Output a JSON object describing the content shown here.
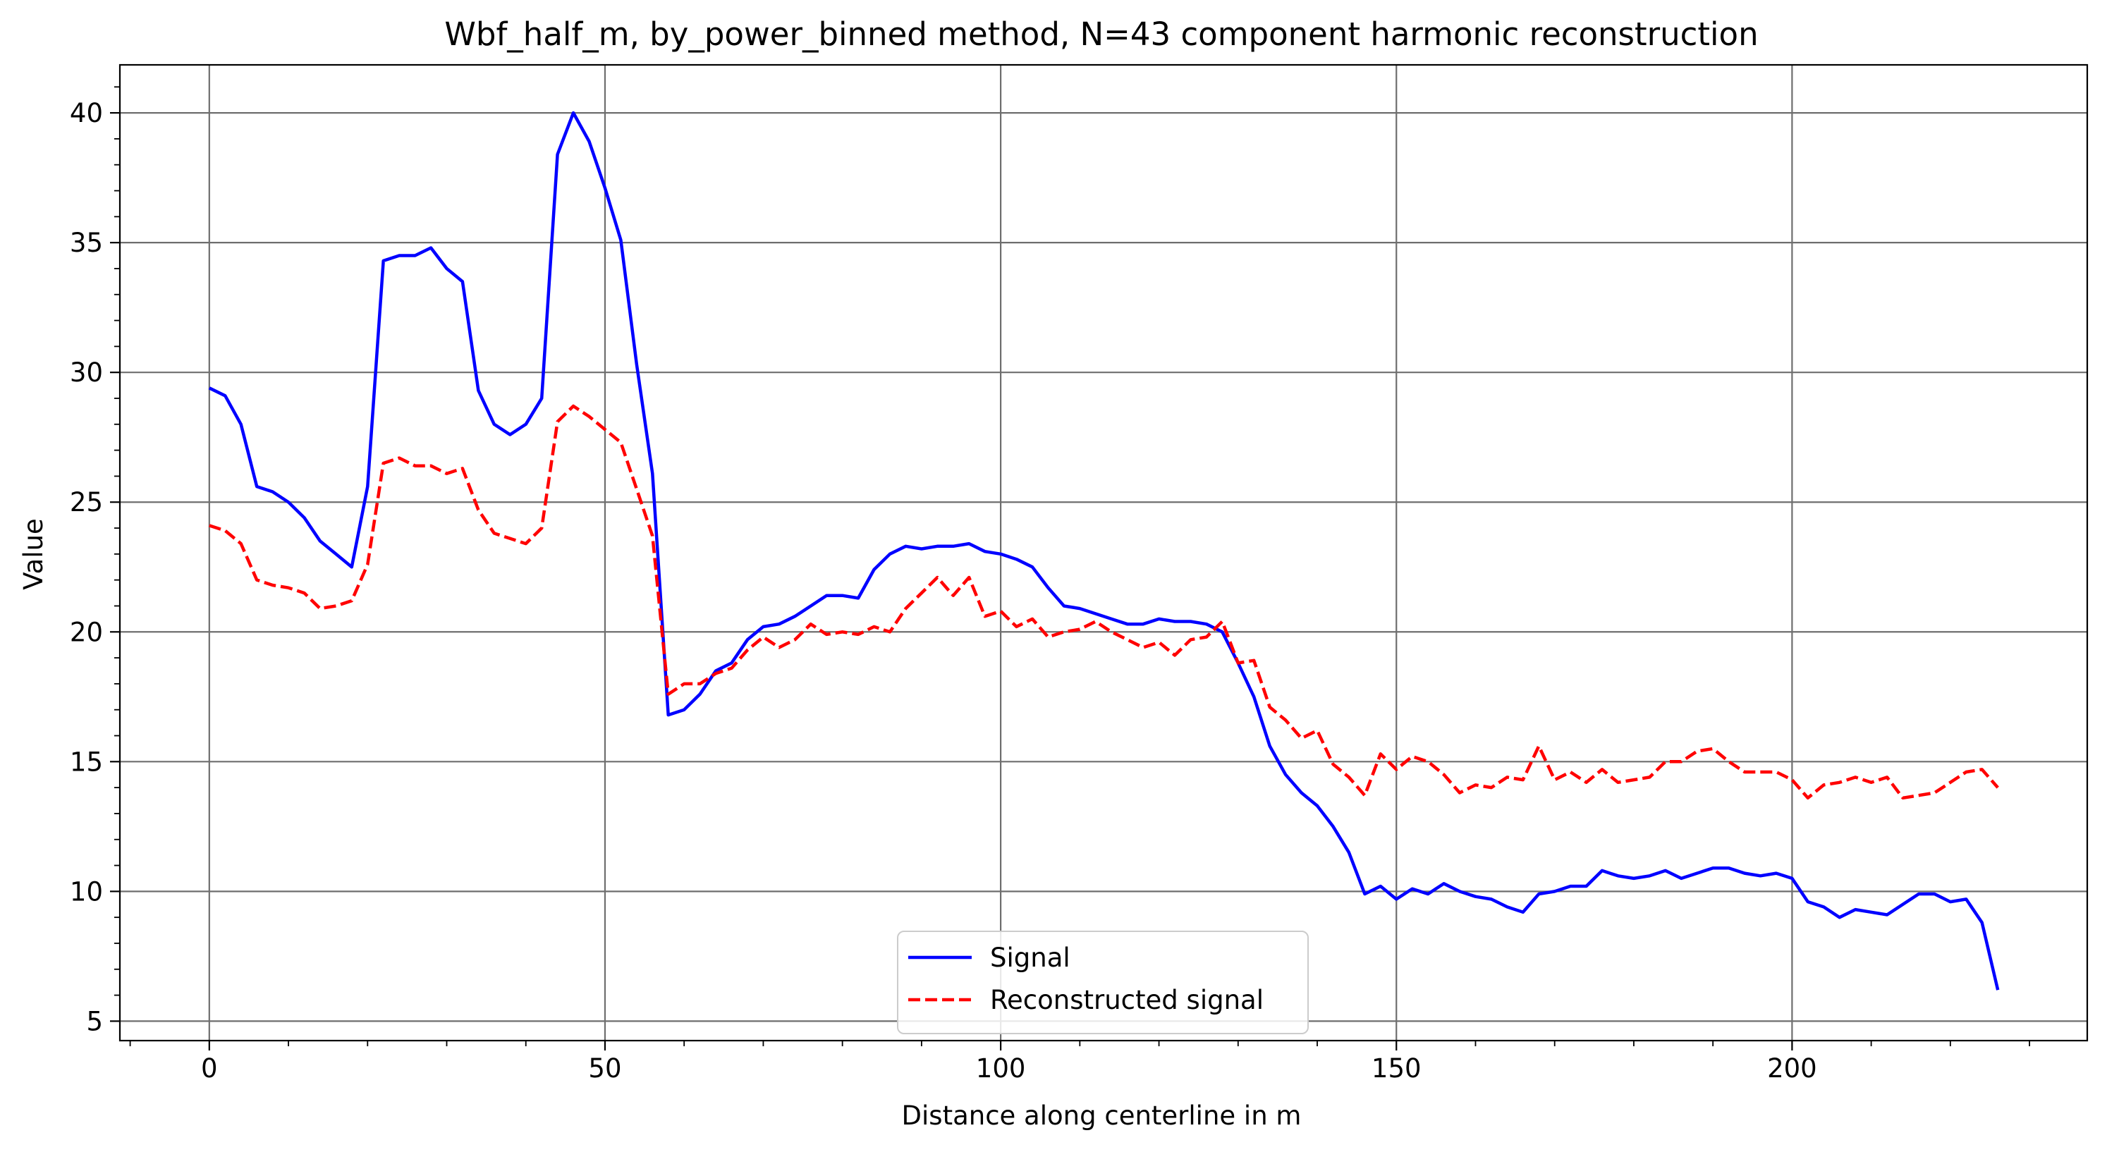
{
  "chart_data": {
    "type": "line",
    "title": "Wbf_half_m, by_power_binned method, N=43 component harmonic reconstruction",
    "xlabel": "Distance along centerline in m",
    "ylabel": "Value",
    "xlim": [
      -11.3,
      237.3
    ],
    "ylim": [
      4.25,
      41.85
    ],
    "xticks": [
      0,
      50,
      100,
      150,
      200
    ],
    "yticks": [
      5,
      10,
      15,
      20,
      25,
      30,
      35,
      40
    ],
    "x_minor_step": 10,
    "y_minor_step": 1,
    "grid": true,
    "legend_placement": "lower center",
    "series": [
      {
        "name": "Signal",
        "color": "#0000ff",
        "style": "solid",
        "x": [
          0,
          2,
          4,
          6,
          8,
          10,
          12,
          14,
          16,
          18,
          20,
          22,
          24,
          26,
          28,
          30,
          32,
          34,
          36,
          38,
          40,
          42,
          44,
          46,
          48,
          50,
          52,
          54,
          56,
          58,
          60,
          62,
          64,
          66,
          68,
          70,
          72,
          74,
          76,
          78,
          80,
          82,
          84,
          86,
          88,
          90,
          92,
          94,
          96,
          98,
          100,
          102,
          104,
          106,
          108,
          110,
          112,
          114,
          116,
          118,
          120,
          122,
          124,
          126,
          128,
          130,
          132,
          134,
          136,
          138,
          140,
          142,
          144,
          146,
          148,
          150,
          152,
          154,
          156,
          158,
          160,
          162,
          164,
          166,
          168,
          170,
          172,
          174,
          176,
          178,
          180,
          182,
          184,
          186,
          188,
          190,
          192,
          194,
          196,
          198,
          200,
          202,
          204,
          206,
          208,
          210,
          212,
          214,
          216,
          218,
          220,
          222,
          224,
          226
        ],
        "y": [
          29.4,
          29.1,
          28.0,
          25.6,
          25.4,
          25.0,
          24.4,
          23.5,
          23.0,
          22.5,
          25.6,
          34.3,
          34.5,
          34.5,
          34.8,
          34.0,
          33.5,
          29.3,
          28.0,
          27.6,
          28.0,
          29.0,
          38.4,
          40.0,
          38.9,
          37.1,
          35.1,
          30.3,
          26.1,
          16.8,
          17.0,
          17.6,
          18.5,
          18.8,
          19.7,
          20.2,
          20.3,
          20.6,
          21.0,
          21.4,
          21.4,
          21.3,
          22.4,
          23.0,
          23.3,
          23.2,
          23.3,
          23.3,
          23.4,
          23.1,
          23.0,
          22.8,
          22.5,
          21.7,
          21.0,
          20.9,
          20.7,
          20.5,
          20.3,
          20.3,
          20.5,
          20.4,
          20.4,
          20.3,
          20.0,
          18.8,
          17.5,
          15.6,
          14.5,
          13.8,
          13.3,
          12.5,
          11.5,
          9.9,
          10.2,
          9.7,
          10.1,
          9.9,
          10.3,
          10.0,
          9.8,
          9.7,
          9.4,
          9.2,
          9.9,
          10.0,
          10.2,
          10.2,
          10.8,
          10.6,
          10.5,
          10.6,
          10.8,
          10.5,
          10.7,
          10.9,
          10.9,
          10.7,
          10.6,
          10.7,
          10.5,
          9.6,
          9.4,
          9.0,
          9.3,
          9.2,
          9.1,
          9.5,
          9.9,
          9.9,
          9.6,
          9.7,
          8.8,
          6.2
        ]
      },
      {
        "name": "Reconstructed signal",
        "color": "#ff0000",
        "style": "dashed",
        "x": [
          0,
          2,
          4,
          6,
          8,
          10,
          12,
          14,
          16,
          18,
          20,
          22,
          24,
          26,
          28,
          30,
          32,
          34,
          36,
          38,
          40,
          42,
          44,
          46,
          48,
          50,
          52,
          54,
          56,
          58,
          60,
          62,
          64,
          66,
          68,
          70,
          72,
          74,
          76,
          78,
          80,
          82,
          84,
          86,
          88,
          90,
          92,
          94,
          96,
          98,
          100,
          102,
          104,
          106,
          108,
          110,
          112,
          114,
          116,
          118,
          120,
          122,
          124,
          126,
          128,
          130,
          132,
          134,
          136,
          138,
          140,
          142,
          144,
          146,
          148,
          150,
          152,
          154,
          156,
          158,
          160,
          162,
          164,
          166,
          168,
          170,
          172,
          174,
          176,
          178,
          180,
          182,
          184,
          186,
          188,
          190,
          192,
          194,
          196,
          198,
          200,
          202,
          204,
          206,
          208,
          210,
          212,
          214,
          216,
          218,
          220,
          222,
          224,
          226
        ],
        "y": [
          24.1,
          23.9,
          23.4,
          22.0,
          21.8,
          21.7,
          21.5,
          20.9,
          21.0,
          21.2,
          22.6,
          26.5,
          26.7,
          26.4,
          26.4,
          26.1,
          26.3,
          24.7,
          23.8,
          23.6,
          23.4,
          24.0,
          28.1,
          28.7,
          28.3,
          27.8,
          27.3,
          25.5,
          23.7,
          17.6,
          18.0,
          18.0,
          18.4,
          18.6,
          19.3,
          19.8,
          19.4,
          19.7,
          20.3,
          19.9,
          20.0,
          19.9,
          20.2,
          20.0,
          20.9,
          21.5,
          22.1,
          21.4,
          22.1,
          20.6,
          20.8,
          20.2,
          20.5,
          19.8,
          20.0,
          20.1,
          20.4,
          20.0,
          19.7,
          19.4,
          19.6,
          19.1,
          19.7,
          19.8,
          20.4,
          18.8,
          18.9,
          17.1,
          16.6,
          15.9,
          16.2,
          14.9,
          14.4,
          13.7,
          15.3,
          14.7,
          15.2,
          15.0,
          14.5,
          13.8,
          14.1,
          14.0,
          14.4,
          14.3,
          15.6,
          14.3,
          14.6,
          14.2,
          14.7,
          14.2,
          14.3,
          14.4,
          15.0,
          15.0,
          15.4,
          15.5,
          15.0,
          14.6,
          14.6,
          14.6,
          14.3,
          13.6,
          14.1,
          14.2,
          14.4,
          14.2,
          14.4,
          13.6,
          13.7,
          13.8,
          14.2,
          14.6,
          14.7,
          14.0
        ]
      }
    ]
  }
}
